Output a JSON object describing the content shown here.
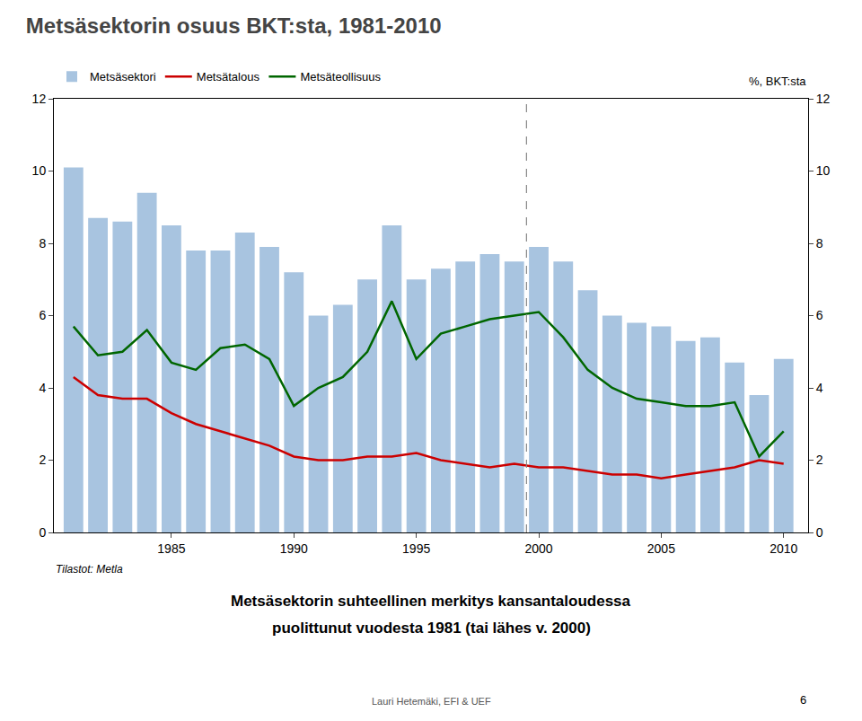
{
  "chart_data": {
    "type": "bar",
    "title": "Metsäsektorin osuus BKT:sta, 1981-2010",
    "ylabel": "%, BKT:sta",
    "annotations": [
      "Tilastot: Metla"
    ],
    "subtitle": [
      "Metsäsektorin suhteellinen merkitys kansantaloudessa",
      "puolittunut vuodesta 1981 (tai lähes v. 2000)"
    ],
    "footer": "Lauri Hetemäki, EFI & UEF",
    "page_number": "6",
    "x": [
      1981,
      1982,
      1983,
      1984,
      1985,
      1986,
      1987,
      1988,
      1989,
      1990,
      1991,
      1992,
      1993,
      1994,
      1995,
      1996,
      1997,
      1998,
      1999,
      2000,
      2001,
      2002,
      2003,
      2004,
      2005,
      2006,
      2007,
      2008,
      2009,
      2010
    ],
    "series": [
      {
        "name": "Metsäsektori",
        "type": "bar",
        "color": "#A8C4E0",
        "values": [
          10.1,
          8.7,
          8.6,
          9.4,
          8.5,
          7.8,
          7.8,
          8.3,
          7.9,
          7.2,
          6.0,
          6.3,
          7.0,
          8.5,
          7.0,
          7.3,
          7.5,
          7.7,
          7.5,
          7.9,
          7.5,
          6.7,
          6.0,
          5.8,
          5.7,
          5.3,
          5.4,
          4.7,
          3.8,
          4.8
        ]
      },
      {
        "name": "Metsätalous",
        "type": "line",
        "color": "#CC0000",
        "values": [
          4.3,
          3.8,
          3.7,
          3.7,
          3.3,
          3.0,
          2.8,
          2.6,
          2.4,
          2.1,
          2.0,
          2.0,
          2.1,
          2.1,
          2.2,
          2.0,
          1.9,
          1.8,
          1.9,
          1.8,
          1.8,
          1.7,
          1.6,
          1.6,
          1.5,
          1.6,
          1.7,
          1.8,
          2.0,
          1.9
        ]
      },
      {
        "name": "Metsäteollisuus",
        "type": "line",
        "color": "#006600",
        "values": [
          5.7,
          4.9,
          5.0,
          5.6,
          4.7,
          4.5,
          5.1,
          5.2,
          4.8,
          3.5,
          4.0,
          4.3,
          5.0,
          6.4,
          4.8,
          5.5,
          5.7,
          5.9,
          6.0,
          6.1,
          5.4,
          4.5,
          4.0,
          3.7,
          3.6,
          3.5,
          3.5,
          3.6,
          2.1,
          2.8
        ]
      }
    ],
    "vline": 1999.5,
    "xlim": [
      1980.2,
      2011
    ],
    "xticks": [
      1985,
      1990,
      1995,
      2000,
      2005,
      2010
    ],
    "ylim": [
      0,
      12
    ],
    "yticks": [
      0,
      2,
      4,
      6,
      8,
      10,
      12
    ],
    "y2lim": [
      0,
      12
    ],
    "y2ticks": [
      0,
      2,
      4,
      6,
      8,
      10,
      12
    ],
    "grid": false,
    "legend": "upper left"
  }
}
